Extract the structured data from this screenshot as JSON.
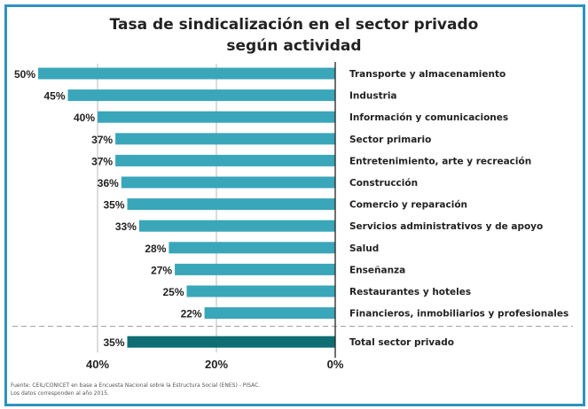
{
  "chart_data": {
    "type": "bar",
    "orientation": "horizontal",
    "title_line1": "Tasa de sindicalización en el sector privado",
    "title_line2": "según actividad",
    "categories": [
      "Transporte y almacenamiento",
      "Industria",
      "Información y comunicaciones",
      "Sector primario",
      "Entretenimiento, arte y recreación",
      "Construcción",
      "Comercio y reparación",
      "Servicios administrativos y de apoyo",
      "Salud",
      "Enseñanza",
      "Restaurantes y hoteles",
      "Financieros, inmobiliarios y profesionales"
    ],
    "values": [
      50,
      45,
      40,
      37,
      37,
      36,
      35,
      33,
      28,
      27,
      25,
      22
    ],
    "value_labels": [
      "50%",
      "45%",
      "40%",
      "37%",
      "37%",
      "36%",
      "35%",
      "33%",
      "28%",
      "27%",
      "25%",
      "22%"
    ],
    "total": {
      "label": "Total sector privado",
      "value": 35,
      "value_label": "35%"
    },
    "x_ticks": [
      40,
      20,
      0
    ],
    "x_tick_labels": [
      "40%",
      "20%",
      "0%"
    ],
    "xlim": [
      0,
      50
    ],
    "x_axis_reversed": true,
    "grid": "vertical",
    "colors": {
      "bar": "#3aa6b9",
      "total_bar": "#0f6e73",
      "frame": "#2c93bd"
    }
  },
  "source": {
    "line1": "Fuente: CEIL/CONICET en base a Encuesta Nacional sobre la Estructura Social (ENES) - PISAC.",
    "line2": "Los datos corresponden al año 2015."
  }
}
